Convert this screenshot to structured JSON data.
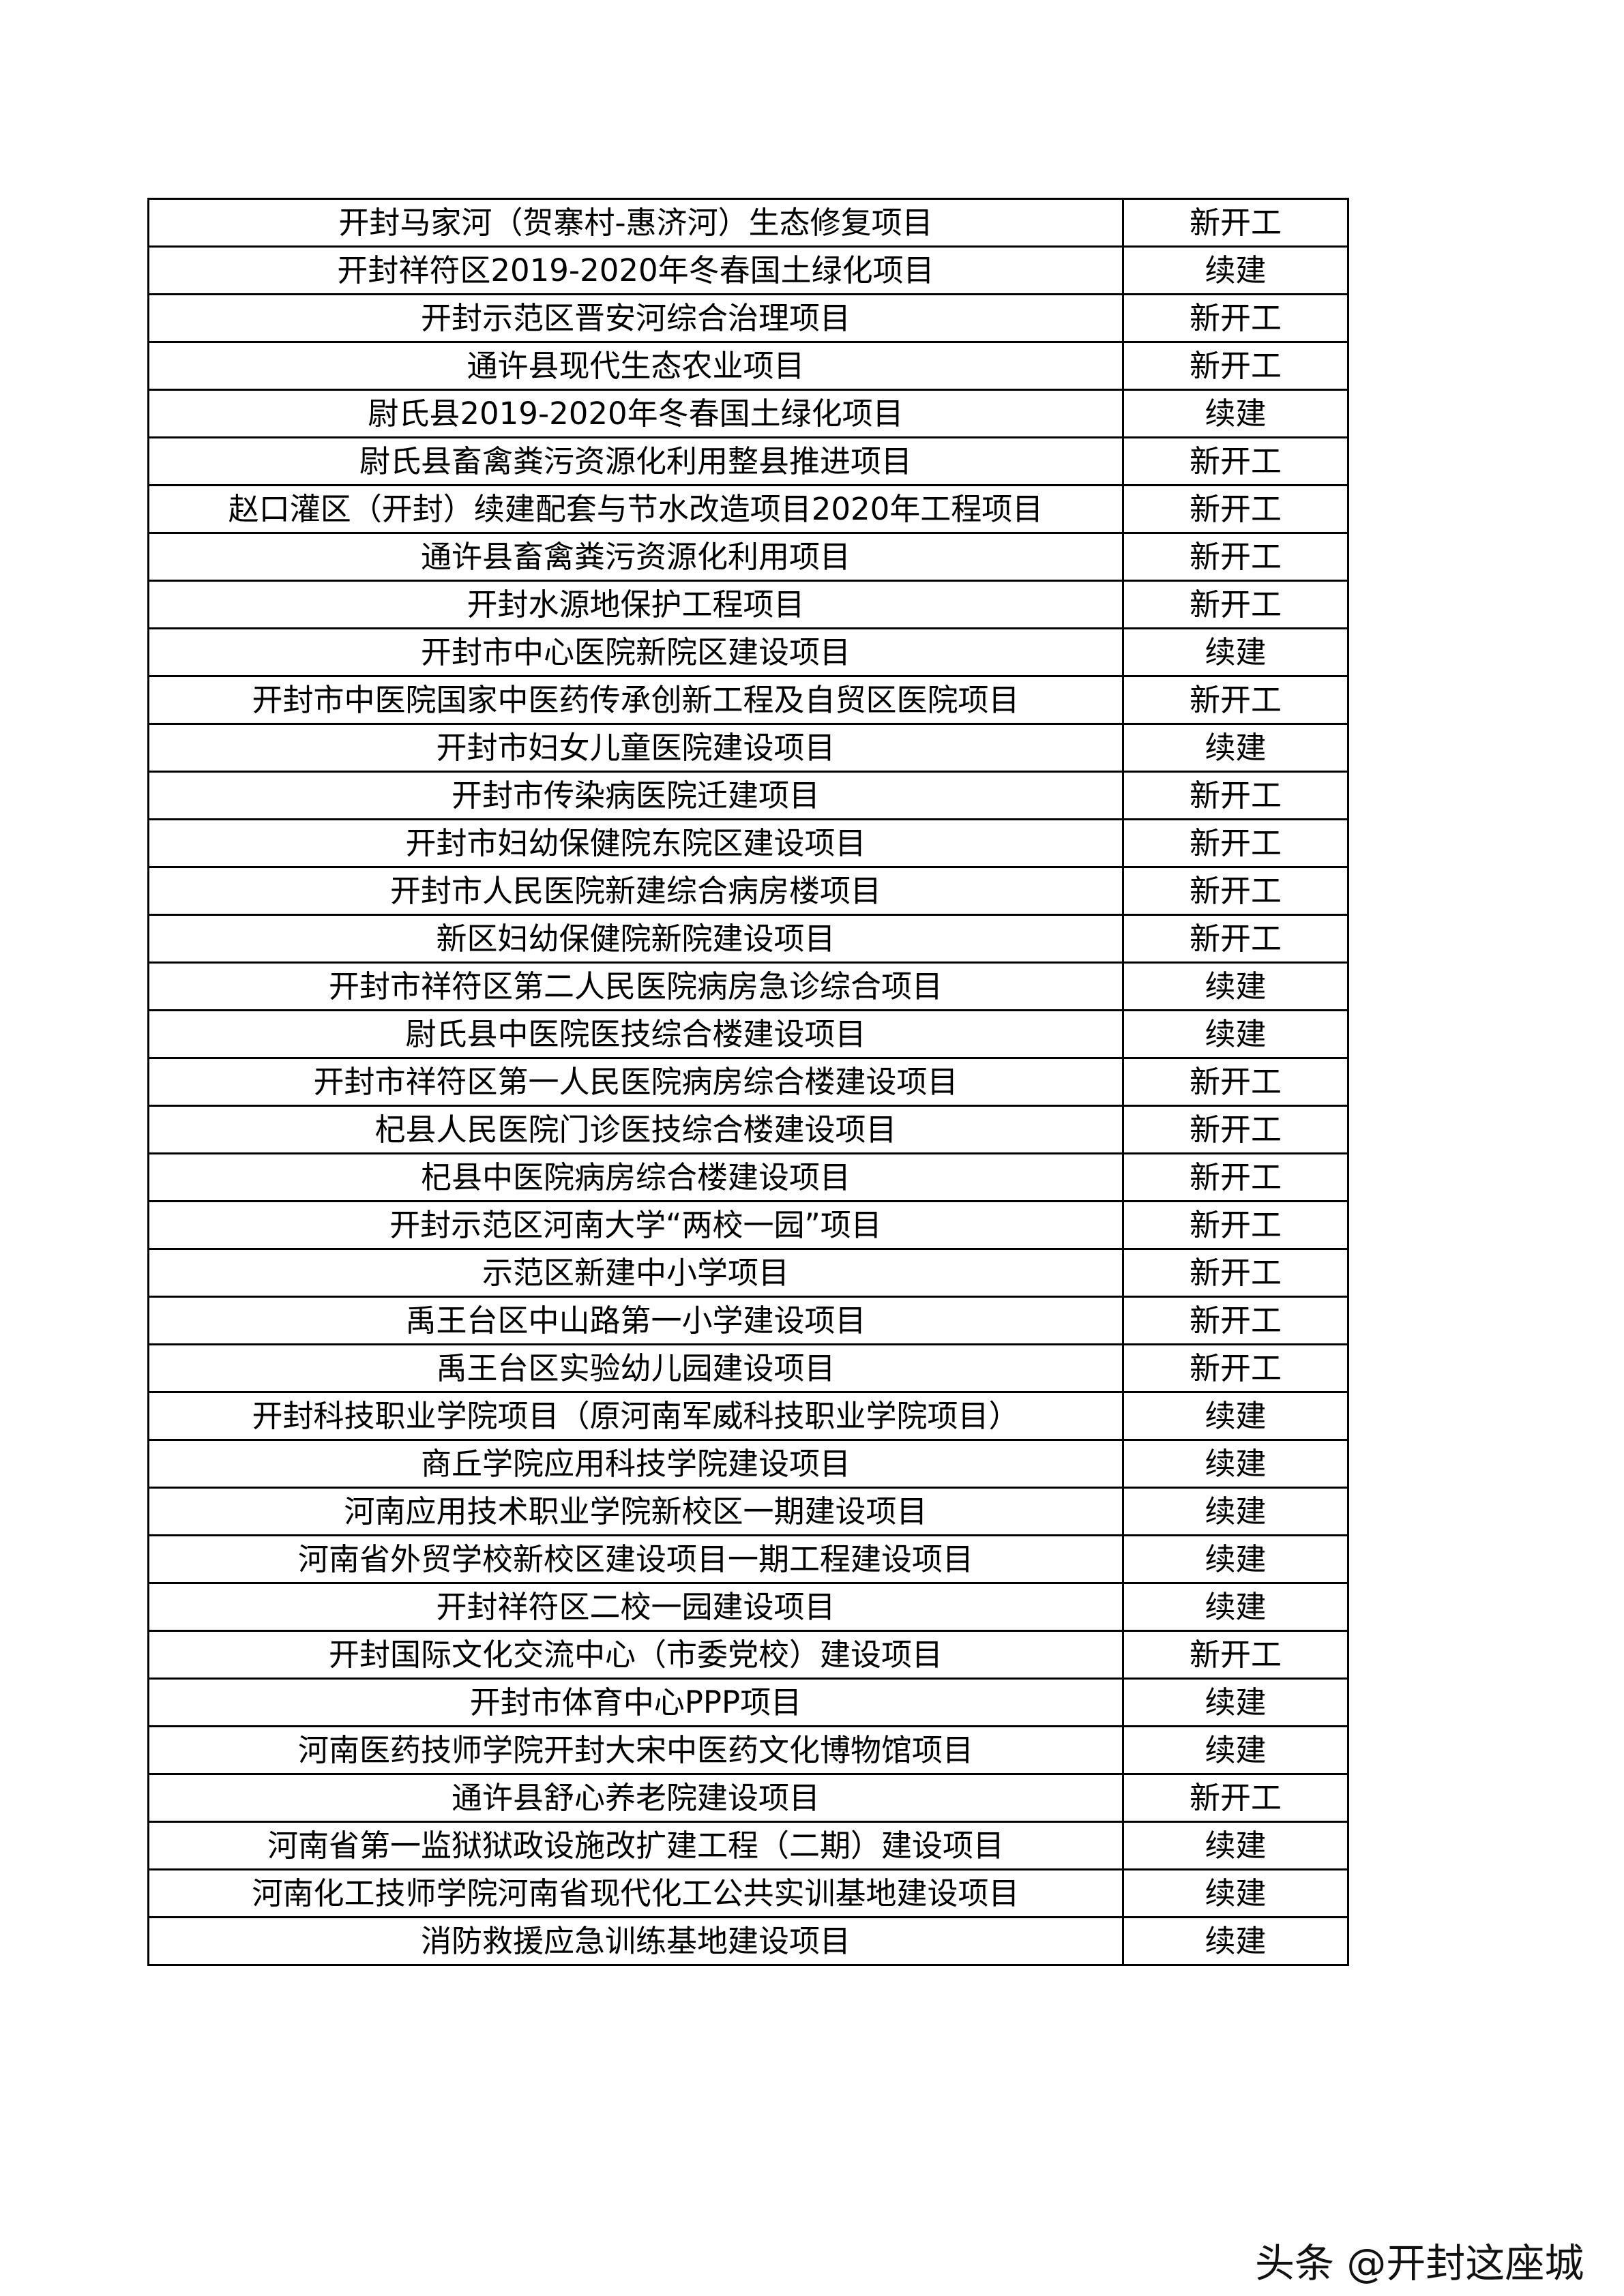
{
  "rows": [
    {
      "name": "开封马家河（贺寨村-惠济河）生态修复项目",
      "status": "新开工"
    },
    {
      "name": "开封祥符区2019-2020年冬春国土绿化项目",
      "status": "续建"
    },
    {
      "name": "开封示范区晋安河综合治理项目",
      "status": "新开工"
    },
    {
      "name": "通许县现代生态农业项目",
      "status": "新开工"
    },
    {
      "name": "尉氏县2019-2020年冬春国土绿化项目",
      "status": "续建"
    },
    {
      "name": "尉氏县畜禽粪污资源化利用整县推进项目",
      "status": "新开工"
    },
    {
      "name": "赵口灌区（开封）续建配套与节水改造项目2020年工程项目",
      "status": "新开工"
    },
    {
      "name": "通许县畜禽粪污资源化利用项目",
      "status": "新开工"
    },
    {
      "name": "开封水源地保护工程项目",
      "status": "新开工"
    },
    {
      "name": "开封市中心医院新院区建设项目",
      "status": "续建"
    },
    {
      "name": "开封市中医院国家中医药传承创新工程及自贸区医院项目",
      "status": "新开工"
    },
    {
      "name": "开封市妇女儿童医院建设项目",
      "status": "续建"
    },
    {
      "name": "开封市传染病医院迁建项目",
      "status": "新开工"
    },
    {
      "name": "开封市妇幼保健院东院区建设项目",
      "status": "新开工"
    },
    {
      "name": "开封市人民医院新建综合病房楼项目",
      "status": "新开工"
    },
    {
      "name": "新区妇幼保健院新院建设项目",
      "status": "新开工"
    },
    {
      "name": "开封市祥符区第二人民医院病房急诊综合项目",
      "status": "续建"
    },
    {
      "name": "尉氏县中医院医技综合楼建设项目",
      "status": "续建"
    },
    {
      "name": "开封市祥符区第一人民医院病房综合楼建设项目",
      "status": "新开工"
    },
    {
      "name": "杞县人民医院门诊医技综合楼建设项目",
      "status": "新开工"
    },
    {
      "name": "杞县中医院病房综合楼建设项目",
      "status": "新开工"
    },
    {
      "name": "开封示范区河南大学“两校一园”项目",
      "status": "新开工"
    },
    {
      "name": "示范区新建中小学项目",
      "status": "新开工"
    },
    {
      "name": "禹王台区中山路第一小学建设项目",
      "status": "新开工"
    },
    {
      "name": "禹王台区实验幼儿园建设项目",
      "status": "新开工"
    },
    {
      "name": "开封科技职业学院项目（原河南军威科技职业学院项目）",
      "status": "续建"
    },
    {
      "name": "商丘学院应用科技学院建设项目",
      "status": "续建"
    },
    {
      "name": "河南应用技术职业学院新校区一期建设项目",
      "status": "续建"
    },
    {
      "name": "河南省外贸学校新校区建设项目一期工程建设项目",
      "status": "续建"
    },
    {
      "name": "开封祥符区二校一园建设项目",
      "status": "续建"
    },
    {
      "name": "开封国际文化交流中心（市委党校）建设项目",
      "status": "新开工"
    },
    {
      "name": "开封市体育中心PPP项目",
      "status": "续建"
    },
    {
      "name": "河南医药技师学院开封大宋中医药文化博物馆项目",
      "status": "续建"
    },
    {
      "name": "通许县舒心养老院建设项目",
      "status": "新开工"
    },
    {
      "name": "河南省第一监狱狱政设施改扩建工程（二期）建设项目",
      "status": "续建"
    },
    {
      "name": "河南化工技师学院河南省现代化工公共实训基地建设项目",
      "status": "续建"
    },
    {
      "name": "消防救援应急训练基地建设项目",
      "status": "续建"
    }
  ],
  "watermark": "头条 @开封这座城"
}
